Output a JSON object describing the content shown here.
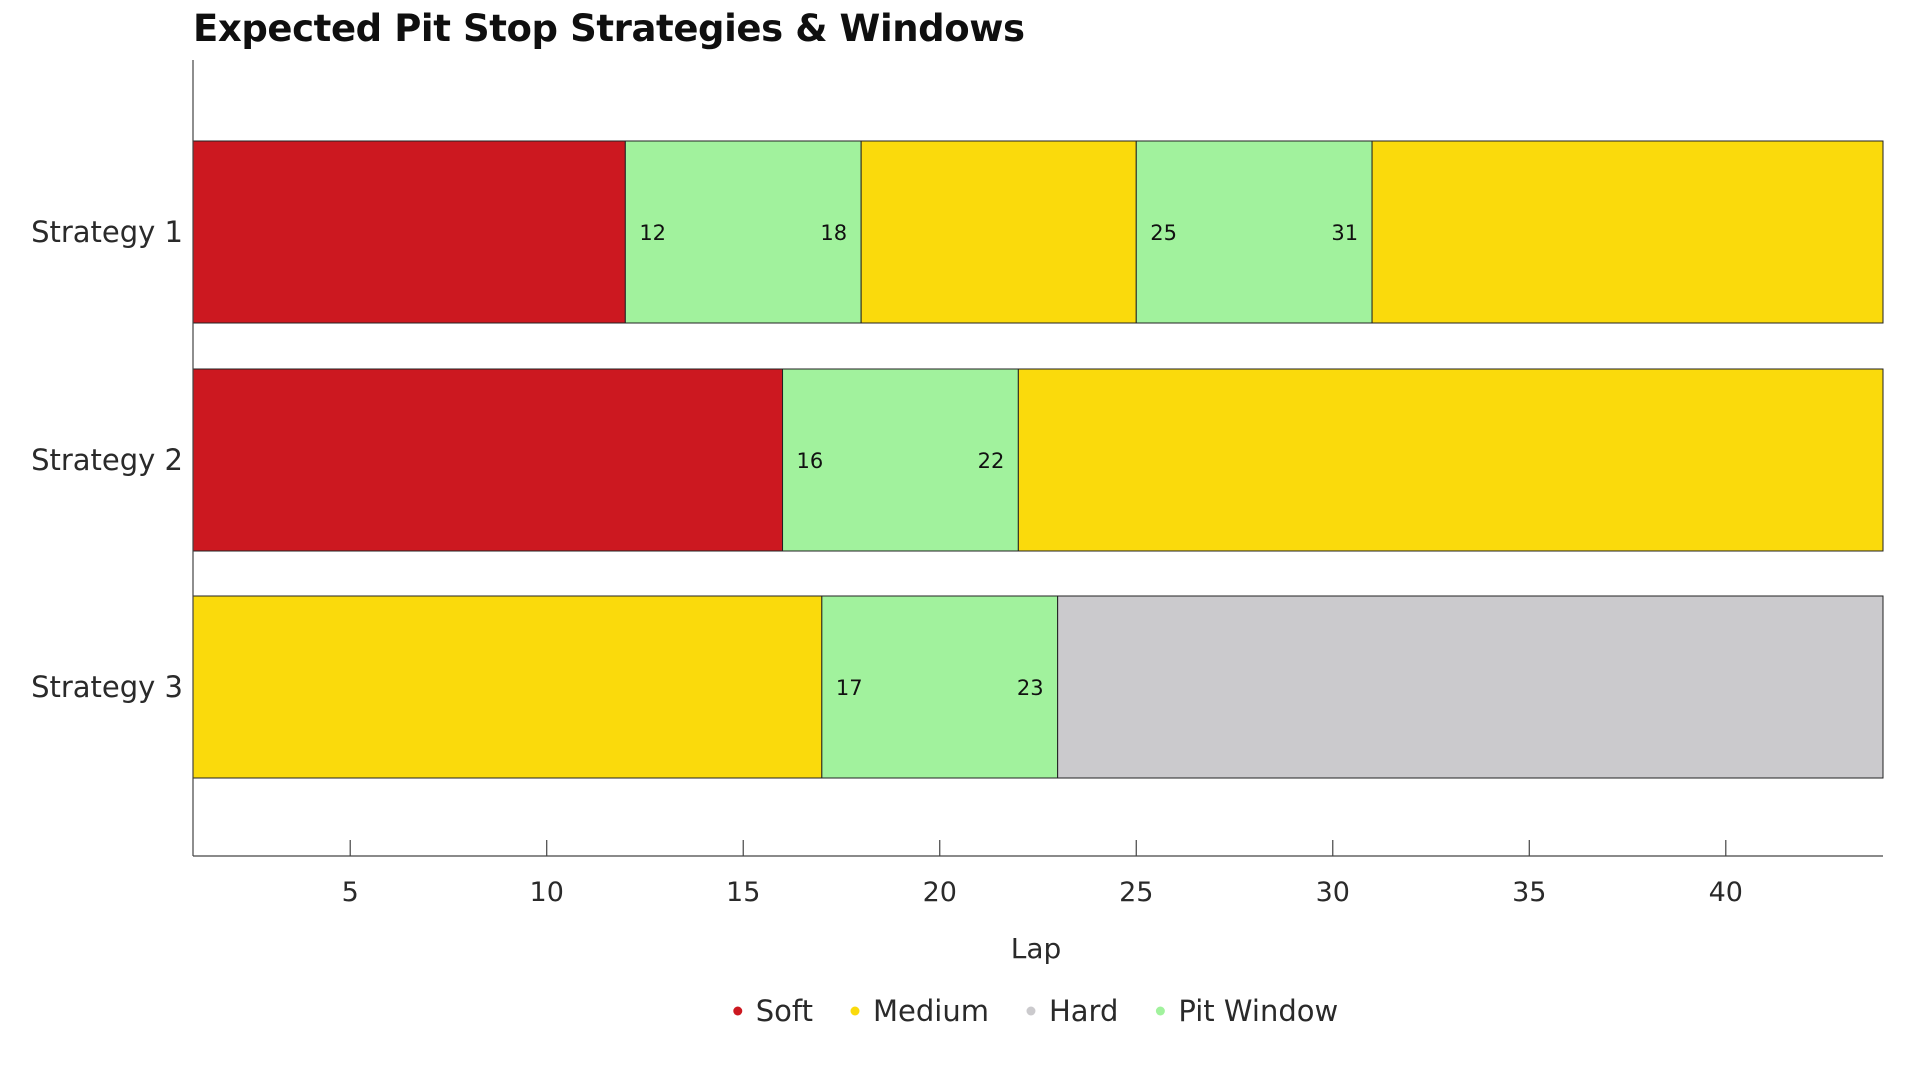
{
  "chart_data": {
    "type": "bar",
    "orientation": "horizontal-stacked",
    "title": "Expected Pit Stop Strategies & Windows",
    "xlabel": "Lap",
    "ylabel": "",
    "xlim": [
      1,
      44
    ],
    "xticks": [
      5,
      10,
      15,
      20,
      25,
      30,
      35,
      40
    ],
    "categories": [
      "Strategy 1",
      "Strategy 2",
      "Strategy 3"
    ],
    "compounds": {
      "Soft": "#cc1820",
      "Medium": "#fada0c",
      "Hard": "#cbcacd",
      "Pit Window": "#a1f29d"
    },
    "strategies": [
      {
        "name": "Strategy 1",
        "segments": [
          {
            "compound": "Soft",
            "start": 1,
            "end": 12
          },
          {
            "compound": "Pit Window",
            "start": 12,
            "end": 18
          },
          {
            "compound": "Medium",
            "start": 18,
            "end": 25
          },
          {
            "compound": "Pit Window",
            "start": 25,
            "end": 31
          },
          {
            "compound": "Medium",
            "start": 31,
            "end": 44
          }
        ]
      },
      {
        "name": "Strategy 2",
        "segments": [
          {
            "compound": "Soft",
            "start": 1,
            "end": 16
          },
          {
            "compound": "Pit Window",
            "start": 16,
            "end": 22
          },
          {
            "compound": "Medium",
            "start": 22,
            "end": 44
          }
        ]
      },
      {
        "name": "Strategy 3",
        "segments": [
          {
            "compound": "Medium",
            "start": 1,
            "end": 17
          },
          {
            "compound": "Pit Window",
            "start": 17,
            "end": 23
          },
          {
            "compound": "Hard",
            "start": 23,
            "end": 44
          }
        ]
      }
    ],
    "legend": {
      "placement": "bottom-center",
      "items": [
        "Soft",
        "Medium",
        "Hard",
        "Pit Window"
      ]
    },
    "grid": false
  }
}
